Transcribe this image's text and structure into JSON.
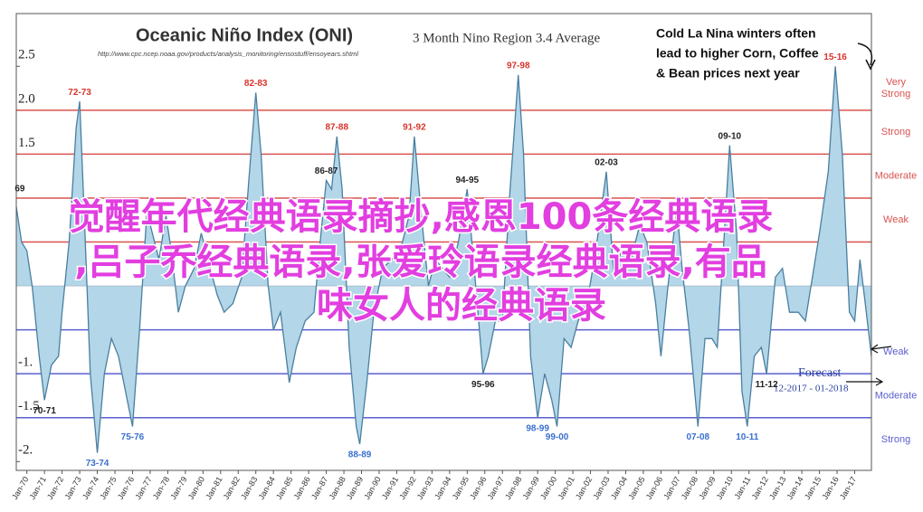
{
  "chart_data": {
    "type": "area",
    "title": "Oceanic Niño Index (ONI)",
    "subtitle": "3 Month Nino Region 3.4 Average",
    "source": "http://www.cpc.ncep.noaa.gov/products/analysis_monitoring/ensostuff/ensoyears.shtml",
    "color": "#4a7fa0",
    "fill": "#b3d6e8",
    "xlim": [
      1969.4,
      2017.95
    ],
    "ylim": [
      -2.1,
      3.1
    ],
    "xticks": [
      {
        "value": 1970,
        "label": "Jan-70"
      },
      {
        "value": 1971,
        "label": "Jan-71"
      },
      {
        "value": 1972,
        "label": "Jan-72"
      },
      {
        "value": 1973,
        "label": "Jan-73"
      },
      {
        "value": 1974,
        "label": "Jan-74"
      },
      {
        "value": 1975,
        "label": "Jan-75"
      },
      {
        "value": 1976,
        "label": "Jan-76"
      },
      {
        "value": 1977,
        "label": "Jan-77"
      },
      {
        "value": 1978,
        "label": "Jan-78"
      },
      {
        "value": 1979,
        "label": "Jan-79"
      },
      {
        "value": 1980,
        "label": "Jan-80"
      },
      {
        "value": 1981,
        "label": "Jan-81"
      },
      {
        "value": 1982,
        "label": "Jan-82"
      },
      {
        "value": 1983,
        "label": "Jan-83"
      },
      {
        "value": 1984,
        "label": "Jan-84"
      },
      {
        "value": 1985,
        "label": "Jan-85"
      },
      {
        "value": 1986,
        "label": "Jan-86"
      },
      {
        "value": 1987,
        "label": "Jan-87"
      },
      {
        "value": 1988,
        "label": "Jan-88"
      },
      {
        "value": 1989,
        "label": "Jan-89"
      },
      {
        "value": 1990,
        "label": "Jan-90"
      },
      {
        "value": 1991,
        "label": "Jan-91"
      },
      {
        "value": 1992,
        "label": "Jan-92"
      },
      {
        "value": 1993,
        "label": "Jan-93"
      },
      {
        "value": 1994,
        "label": "Jan-94"
      },
      {
        "value": 1995,
        "label": "Jan-95"
      },
      {
        "value": 1996,
        "label": "Jan-96"
      },
      {
        "value": 1997,
        "label": "Jan-97"
      },
      {
        "value": 1998,
        "label": "Jan-98"
      },
      {
        "value": 1999,
        "label": "Jan-99"
      },
      {
        "value": 2000,
        "label": "Jan-00"
      },
      {
        "value": 2001,
        "label": "Jan-01"
      },
      {
        "value": 2002,
        "label": "Jan-02"
      },
      {
        "value": 2003,
        "label": "Jan-03"
      },
      {
        "value": 2004,
        "label": "Jan-04"
      },
      {
        "value": 2005,
        "label": "Jan-05"
      },
      {
        "value": 2006,
        "label": "Jan-06"
      },
      {
        "value": 2007,
        "label": "Jan-07"
      },
      {
        "value": 2008,
        "label": "Jan-08"
      },
      {
        "value": 2009,
        "label": "Jan-09"
      },
      {
        "value": 2010,
        "label": "Jan-10"
      },
      {
        "value": 2011,
        "label": "Jan-11"
      },
      {
        "value": 2012,
        "label": "Jan-12"
      },
      {
        "value": 2013,
        "label": "Jan-13"
      },
      {
        "value": 2014,
        "label": "Jan-14"
      },
      {
        "value": 2015,
        "label": "Jan-15"
      },
      {
        "value": 2016,
        "label": "Jan-16"
      },
      {
        "value": 2017,
        "label": "Jan-17"
      }
    ],
    "yticks": [
      2.5,
      {
        "value": 2,
        "label": "2.0"
      },
      1.5,
      {
        "value": -1,
        "label": "-1."
      },
      -1.5,
      {
        "value": -2,
        "label": "-2."
      }
    ],
    "thresholds": [
      {
        "value": 2.0,
        "color": "#d9534f",
        "label": "Very Strong"
      },
      {
        "value": 1.5,
        "color": "#d9534f",
        "label": "Strong"
      },
      {
        "value": 1.0,
        "color": "#d9534f",
        "label": "Moderate"
      },
      {
        "value": 0.5,
        "color": "#d9534f",
        "label": "Weak"
      },
      {
        "value": -0.5,
        "color": "#5a5fd0",
        "label": "Weak"
      },
      {
        "value": -1.0,
        "color": "#5a5fd0",
        "label": "Moderate"
      },
      {
        "value": -1.5,
        "color": "#5a5fd0",
        "label": "Strong"
      }
    ],
    "x": [
      1969.4,
      1969.7,
      1970.0,
      1970.3,
      1970.7,
      1971.0,
      1971.4,
      1971.8,
      1972.0,
      1972.4,
      1972.8,
      1973.0,
      1973.3,
      1973.6,
      1974.0,
      1974.4,
      1974.8,
      1975.2,
      1975.6,
      1976.0,
      1976.4,
      1976.8,
      1977.0,
      1977.5,
      1977.9,
      1978.2,
      1978.6,
      1979.0,
      1979.5,
      1979.9,
      1980.3,
      1980.8,
      1981.2,
      1981.7,
      1982.2,
      1982.6,
      1983.0,
      1983.3,
      1983.7,
      1984.0,
      1984.4,
      1984.9,
      1985.3,
      1985.8,
      1986.3,
      1986.7,
      1987.0,
      1987.3,
      1987.6,
      1987.9,
      1988.3,
      1988.7,
      1988.9,
      1989.3,
      1989.7,
      1990.2,
      1990.7,
      1991.2,
      1991.7,
      1992.0,
      1992.4,
      1992.8,
      1993.2,
      1993.6,
      1994.0,
      1994.5,
      1995.0,
      1995.4,
      1995.9,
      1996.2,
      1996.6,
      1997.0,
      1997.4,
      1997.9,
      1998.2,
      1998.6,
      1999.0,
      1999.4,
      1999.8,
      2000.1,
      2000.5,
      2000.9,
      2001.3,
      2001.8,
      2002.3,
      2002.9,
      2003.3,
      2003.8,
      2004.3,
      2004.8,
      2005.2,
      2005.7,
      2006.0,
      2006.4,
      2006.9,
      2007.2,
      2007.6,
      2008.1,
      2008.5,
      2008.9,
      2009.2,
      2009.6,
      2009.9,
      2010.3,
      2010.6,
      2010.9,
      2011.3,
      2011.7,
      2012.0,
      2012.5,
      2012.9,
      2013.3,
      2013.8,
      2014.2,
      2014.6,
      2015.0,
      2015.5,
      2015.9,
      2016.3,
      2016.7,
      2017.0,
      2017.3,
      2017.6,
      2017.95
    ],
    "values": [
      0.9,
      0.5,
      0.4,
      0.0,
      -0.8,
      -1.3,
      -0.9,
      -0.8,
      -0.3,
      0.5,
      1.8,
      2.1,
      0.6,
      -1.0,
      -1.9,
      -1.0,
      -0.6,
      -0.8,
      -1.2,
      -1.6,
      -0.5,
      0.8,
      0.7,
      0.3,
      0.8,
      0.4,
      -0.3,
      0.0,
      0.2,
      0.6,
      0.3,
      -0.1,
      -0.3,
      -0.2,
      0.1,
      1.2,
      2.2,
      1.5,
      0.0,
      -0.5,
      -0.3,
      -1.1,
      -0.7,
      -0.4,
      -0.3,
      0.6,
      1.2,
      1.1,
      1.7,
      1.1,
      -0.7,
      -1.6,
      -1.8,
      -1.1,
      -0.3,
      0.2,
      0.3,
      0.4,
      0.8,
      1.7,
      0.8,
      0.0,
      0.3,
      0.2,
      0.1,
      0.5,
      1.1,
      0.2,
      -1.0,
      -0.8,
      -0.4,
      -0.4,
      1.0,
      2.4,
      1.5,
      -0.8,
      -1.5,
      -1.0,
      -1.3,
      -1.6,
      -0.6,
      -0.7,
      -0.4,
      -0.2,
      0.4,
      1.3,
      0.2,
      0.4,
      0.3,
      0.7,
      0.5,
      -0.2,
      -0.8,
      0.0,
      0.9,
      0.2,
      -0.5,
      -1.6,
      -0.6,
      -0.6,
      -0.7,
      0.6,
      1.6,
      0.6,
      -1.2,
      -1.6,
      -0.8,
      -0.7,
      -1.0,
      0.1,
      0.2,
      -0.3,
      -0.3,
      -0.4,
      0.1,
      0.6,
      1.3,
      2.5,
      1.5,
      -0.3,
      -0.4,
      0.3,
      -0.2,
      -0.8
    ],
    "annotations": [
      {
        "text": "69",
        "x": 1969.6,
        "y": 1.0,
        "color": "#222222"
      },
      {
        "text": "70-71",
        "x": 1971.0,
        "y": -1.3,
        "color": "#222222"
      },
      {
        "text": "72-73",
        "x": 1973.0,
        "y": 2.1,
        "color": "#d9342b"
      },
      {
        "text": "73-74",
        "x": 1974.0,
        "y": -1.9,
        "color": "#3a6fd0"
      },
      {
        "text": "75-76",
        "x": 1976.0,
        "y": -1.6,
        "color": "#3a6fd0"
      },
      {
        "text": "82-83",
        "x": 1983.0,
        "y": 2.2,
        "color": "#d9342b"
      },
      {
        "text": "86-87",
        "x": 1987.0,
        "y": 1.2,
        "color": "#222222"
      },
      {
        "text": "87-88",
        "x": 1987.6,
        "y": 1.7,
        "color": "#d9342b"
      },
      {
        "text": "88-89",
        "x": 1988.9,
        "y": -1.8,
        "color": "#3a6fd0"
      },
      {
        "text": "91-92",
        "x": 1992.0,
        "y": 1.7,
        "color": "#d9342b"
      },
      {
        "text": "94-95",
        "x": 1995.0,
        "y": 1.1,
        "color": "#222222"
      },
      {
        "text": "95-96",
        "x": 1995.9,
        "y": -1.0,
        "color": "#222222"
      },
      {
        "text": "97-98",
        "x": 1997.9,
        "y": 2.4,
        "color": "#d9342b"
      },
      {
        "text": "98-99",
        "x": 1999.0,
        "y": -1.5,
        "color": "#3a6fd0"
      },
      {
        "text": "99-00",
        "x": 2000.1,
        "y": -1.6,
        "color": "#3a6fd0"
      },
      {
        "text": "02-03",
        "x": 2002.9,
        "y": 1.3,
        "color": "#222222"
      },
      {
        "text": "07-08",
        "x": 2008.1,
        "y": -1.6,
        "color": "#3a6fd0"
      },
      {
        "text": "09-10",
        "x": 2009.9,
        "y": 1.6,
        "color": "#222222"
      },
      {
        "text": "10-11",
        "x": 2010.9,
        "y": -1.6,
        "color": "#3a6fd0"
      },
      {
        "text": "11-12",
        "x": 2012.0,
        "y": -1.0,
        "color": "#222222"
      },
      {
        "text": "15-16",
        "x": 2015.9,
        "y": 2.5,
        "color": "#d9342b"
      }
    ],
    "note": [
      "Cold La Nina winters often",
      "lead to higher Corn, Coffee",
      "& Bean prices next year"
    ],
    "forecast": "Forecast",
    "forecast_period": "12-2017 - 01-2018"
  },
  "overlay": {
    "lines": [
      "觉醒年代经典语录摘抄,感恩100条经典语录",
      ",吕子乔经典语录,张爱玲语录经典语录,有品",
      "味女人的经典语录"
    ]
  }
}
